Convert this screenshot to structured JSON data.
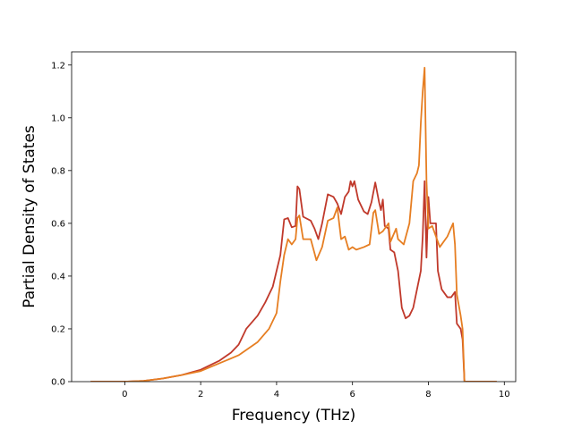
{
  "chart_data": {
    "type": "line",
    "title": "",
    "xlabel": "Frequency (THz)",
    "ylabel": "Partial Density of States",
    "xlim": [
      -1.4,
      10.3
    ],
    "ylim": [
      0.0,
      1.25
    ],
    "xticks": [
      0,
      2,
      4,
      6,
      8,
      10
    ],
    "yticks": [
      0.0,
      0.2,
      0.4,
      0.6,
      0.8,
      1.0,
      1.2
    ],
    "xtick_labels": [
      "0",
      "2",
      "4",
      "6",
      "8",
      "10"
    ],
    "ytick_labels": [
      "0.0",
      "0.2",
      "0.4",
      "0.6",
      "0.8",
      "1.0",
      "1.2"
    ],
    "grid": false,
    "legend": "none",
    "series": [
      {
        "color": "#c0392b",
        "points": [
          [
            -0.9,
            0.0
          ],
          [
            0.0,
            0.0
          ],
          [
            0.5,
            0.003
          ],
          [
            1.0,
            0.012
          ],
          [
            1.5,
            0.025
          ],
          [
            2.0,
            0.045
          ],
          [
            2.5,
            0.08
          ],
          [
            2.8,
            0.11
          ],
          [
            3.0,
            0.14
          ],
          [
            3.2,
            0.2
          ],
          [
            3.5,
            0.25
          ],
          [
            3.7,
            0.3
          ],
          [
            3.9,
            0.36
          ],
          [
            4.1,
            0.48
          ],
          [
            4.2,
            0.615
          ],
          [
            4.3,
            0.62
          ],
          [
            4.4,
            0.585
          ],
          [
            4.5,
            0.59
          ],
          [
            4.55,
            0.74
          ],
          [
            4.6,
            0.73
          ],
          [
            4.7,
            0.625
          ],
          [
            4.9,
            0.61
          ],
          [
            5.0,
            0.58
          ],
          [
            5.1,
            0.54
          ],
          [
            5.2,
            0.6
          ],
          [
            5.35,
            0.71
          ],
          [
            5.5,
            0.7
          ],
          [
            5.6,
            0.675
          ],
          [
            5.7,
            0.635
          ],
          [
            5.8,
            0.7
          ],
          [
            5.9,
            0.72
          ],
          [
            5.95,
            0.76
          ],
          [
            6.0,
            0.74
          ],
          [
            6.05,
            0.76
          ],
          [
            6.15,
            0.69
          ],
          [
            6.3,
            0.645
          ],
          [
            6.4,
            0.635
          ],
          [
            6.5,
            0.68
          ],
          [
            6.6,
            0.755
          ],
          [
            6.7,
            0.68
          ],
          [
            6.75,
            0.65
          ],
          [
            6.8,
            0.69
          ],
          [
            6.85,
            0.59
          ],
          [
            6.95,
            0.58
          ],
          [
            7.0,
            0.5
          ],
          [
            7.1,
            0.49
          ],
          [
            7.2,
            0.42
          ],
          [
            7.3,
            0.28
          ],
          [
            7.4,
            0.24
          ],
          [
            7.5,
            0.25
          ],
          [
            7.6,
            0.28
          ],
          [
            7.8,
            0.42
          ],
          [
            7.85,
            0.55
          ],
          [
            7.9,
            0.76
          ],
          [
            7.95,
            0.47
          ],
          [
            8.0,
            0.7
          ],
          [
            8.05,
            0.6
          ],
          [
            8.2,
            0.6
          ],
          [
            8.25,
            0.42
          ],
          [
            8.35,
            0.35
          ],
          [
            8.5,
            0.32
          ],
          [
            8.6,
            0.32
          ],
          [
            8.7,
            0.34
          ],
          [
            8.75,
            0.22
          ],
          [
            8.8,
            0.21
          ],
          [
            8.85,
            0.2
          ],
          [
            8.9,
            0.16
          ],
          [
            8.95,
            0.0
          ],
          [
            9.8,
            0.0
          ]
        ]
      },
      {
        "color": "#e67e22",
        "points": [
          [
            -0.9,
            0.0
          ],
          [
            0.0,
            0.0
          ],
          [
            0.5,
            0.003
          ],
          [
            1.0,
            0.012
          ],
          [
            1.5,
            0.025
          ],
          [
            2.0,
            0.04
          ],
          [
            2.5,
            0.07
          ],
          [
            3.0,
            0.1
          ],
          [
            3.5,
            0.15
          ],
          [
            3.8,
            0.2
          ],
          [
            4.0,
            0.26
          ],
          [
            4.1,
            0.38
          ],
          [
            4.2,
            0.48
          ],
          [
            4.3,
            0.54
          ],
          [
            4.4,
            0.52
          ],
          [
            4.5,
            0.54
          ],
          [
            4.55,
            0.62
          ],
          [
            4.6,
            0.63
          ],
          [
            4.7,
            0.54
          ],
          [
            4.9,
            0.54
          ],
          [
            5.05,
            0.46
          ],
          [
            5.2,
            0.51
          ],
          [
            5.35,
            0.61
          ],
          [
            5.5,
            0.62
          ],
          [
            5.6,
            0.66
          ],
          [
            5.7,
            0.54
          ],
          [
            5.8,
            0.55
          ],
          [
            5.9,
            0.5
          ],
          [
            6.0,
            0.51
          ],
          [
            6.1,
            0.5
          ],
          [
            6.3,
            0.51
          ],
          [
            6.45,
            0.52
          ],
          [
            6.55,
            0.64
          ],
          [
            6.6,
            0.65
          ],
          [
            6.7,
            0.56
          ],
          [
            6.8,
            0.57
          ],
          [
            6.95,
            0.6
          ],
          [
            7.0,
            0.53
          ],
          [
            7.15,
            0.58
          ],
          [
            7.2,
            0.54
          ],
          [
            7.35,
            0.52
          ],
          [
            7.5,
            0.6
          ],
          [
            7.6,
            0.76
          ],
          [
            7.7,
            0.79
          ],
          [
            7.75,
            0.82
          ],
          [
            7.8,
            0.98
          ],
          [
            7.85,
            1.1
          ],
          [
            7.9,
            1.19
          ],
          [
            7.95,
            0.76
          ],
          [
            8.0,
            0.58
          ],
          [
            8.1,
            0.59
          ],
          [
            8.3,
            0.51
          ],
          [
            8.5,
            0.55
          ],
          [
            8.65,
            0.6
          ],
          [
            8.7,
            0.52
          ],
          [
            8.75,
            0.33
          ],
          [
            8.85,
            0.25
          ],
          [
            8.9,
            0.2
          ],
          [
            8.95,
            0.0
          ],
          [
            9.8,
            0.0
          ]
        ]
      }
    ]
  }
}
